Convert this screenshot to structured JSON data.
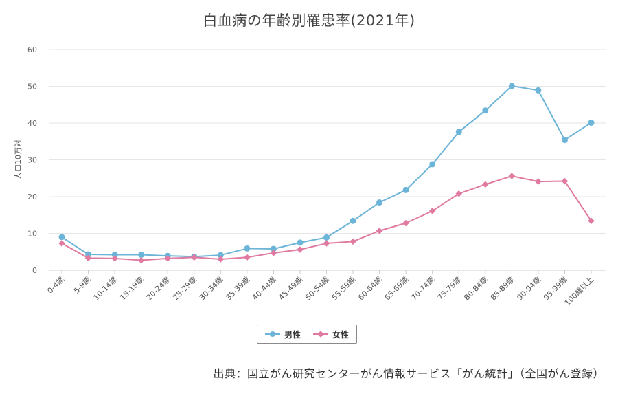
{
  "chart_data": {
    "type": "line",
    "title": "白血病の年齢別罹患率(2021年)",
    "xlabel": "",
    "ylabel": "人口10万対",
    "ylim": [
      0,
      60
    ],
    "yticks": [
      "0",
      "10",
      "20",
      "30",
      "40",
      "50",
      "60"
    ],
    "grid": true,
    "legend_position": "bottom",
    "categories": [
      "0-4歳",
      "5-9歳",
      "10-14歳",
      "15-19歳",
      "20-24歳",
      "25-29歳",
      "30-34歳",
      "35-39歳",
      "40-44歳",
      "45-49歳",
      "50-54歳",
      "55-59歳",
      "60-64歳",
      "65-69歳",
      "70-74歳",
      "75-79歳",
      "80-84歳",
      "85-89歳",
      "90-94歳",
      "95-99歳",
      "100歳以上"
    ],
    "series": [
      {
        "name": "男性",
        "color": "#6cb4d8",
        "marker": "circle",
        "values": [
          9.0,
          4.3,
          4.2,
          4.2,
          3.9,
          3.7,
          4.1,
          5.9,
          5.8,
          7.5,
          8.9,
          13.4,
          18.4,
          21.8,
          28.8,
          37.6,
          43.4,
          50.1,
          48.9,
          35.4,
          40.1
        ]
      },
      {
        "name": "女性",
        "color": "#e07aa0",
        "marker": "diamond",
        "values": [
          7.3,
          3.3,
          3.2,
          2.7,
          3.2,
          3.5,
          3.0,
          3.5,
          4.7,
          5.6,
          7.3,
          7.8,
          10.7,
          12.8,
          16.1,
          20.8,
          23.3,
          25.6,
          24.1,
          24.2,
          13.4
        ]
      }
    ]
  },
  "source_note": "出典：国立がん研究センターがん情報サービス「がん統計」（全国がん登録）"
}
